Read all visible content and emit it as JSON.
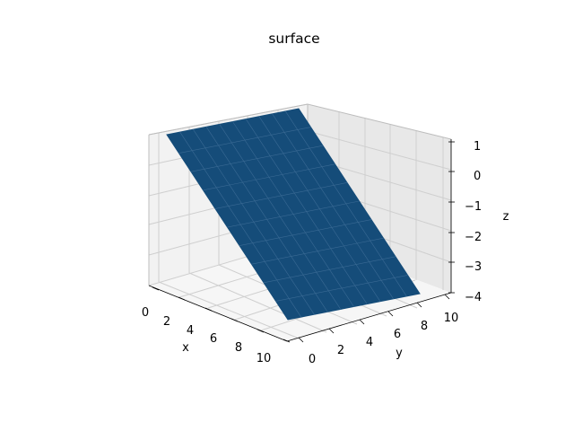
{
  "chart_data": {
    "type": "surface",
    "title": "surface",
    "xlabel": "x",
    "ylabel": "y",
    "zlabel": "z",
    "xlim": [
      0,
      10
    ],
    "ylim": [
      0,
      10
    ],
    "zlim": [
      -4,
      1
    ],
    "x_ticks": [
      "0",
      "2",
      "4",
      "6",
      "8",
      "10"
    ],
    "y_ticks": [
      "0",
      "2",
      "4",
      "6",
      "8",
      "10"
    ],
    "z_ticks": [
      "1",
      "0",
      "−1",
      "−2",
      "−3",
      "−4"
    ],
    "grid": true,
    "surface_color": "#154c79",
    "surface": {
      "corners": [
        {
          "x": 0,
          "y": 0,
          "z": 1
        },
        {
          "x": 0,
          "y": 10,
          "z": 1
        },
        {
          "x": 10,
          "y": 10,
          "z": -4
        },
        {
          "x": 10,
          "y": 0,
          "z": -4
        }
      ],
      "grid_divisions": 10
    }
  }
}
